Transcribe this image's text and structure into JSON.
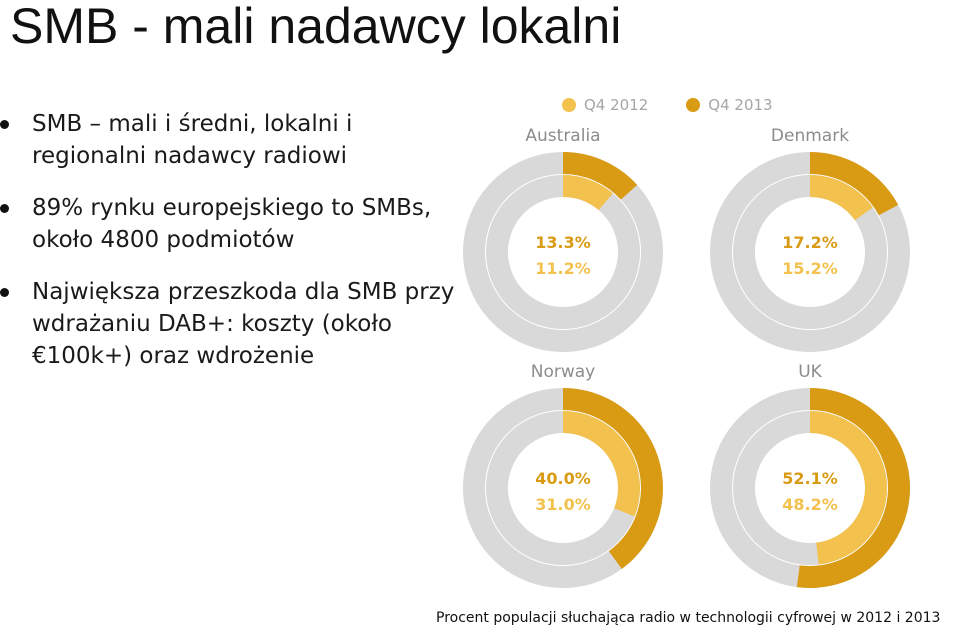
{
  "title": "SMB - mali nadawcy lokalni",
  "bullets": [
    {
      "text": "SMB – mali i średni, lokalni i regionalni nadawcy radiowi"
    },
    {
      "text": "89% rynku europejskiego to SMBs, około 4800 podmiotów"
    },
    {
      "text": "Największa przeszkoda dla SMB przy wdrażaniu DAB+: koszty (około €100k+) oraz wdrożenie"
    }
  ],
  "footer": "Procent populacji słuchająca radio w technologii cyfrowej w 2012 i 2013",
  "colors": {
    "q4_2012": "#f2c14e",
    "q4_2013": "#d99b14",
    "track": "#d9d9d9",
    "value_2013_text": "#d99b14",
    "value_2012_text": "#f2c14e"
  },
  "chart_data": {
    "type": "pie",
    "subtype": "nested-donut",
    "legend": [
      "Q4 2012",
      "Q4 2013"
    ],
    "legend_position": "top",
    "unit": "%",
    "panels": [
      {
        "name": "Australia",
        "q4_2013": 13.3,
        "q4_2012": 11.2,
        "label_2013": "13.3%",
        "label_2012": "11.2%"
      },
      {
        "name": "Denmark",
        "q4_2013": 17.2,
        "q4_2012": 15.2,
        "label_2013": "17.2%",
        "label_2012": "15.2%"
      },
      {
        "name": "Norway",
        "q4_2013": 40.0,
        "q4_2012": 31.0,
        "label_2013": "40.0%",
        "label_2012": "31.0%"
      },
      {
        "name": "UK",
        "q4_2013": 52.1,
        "q4_2012": 48.2,
        "label_2013": "52.1%",
        "label_2012": "48.2%"
      }
    ]
  }
}
